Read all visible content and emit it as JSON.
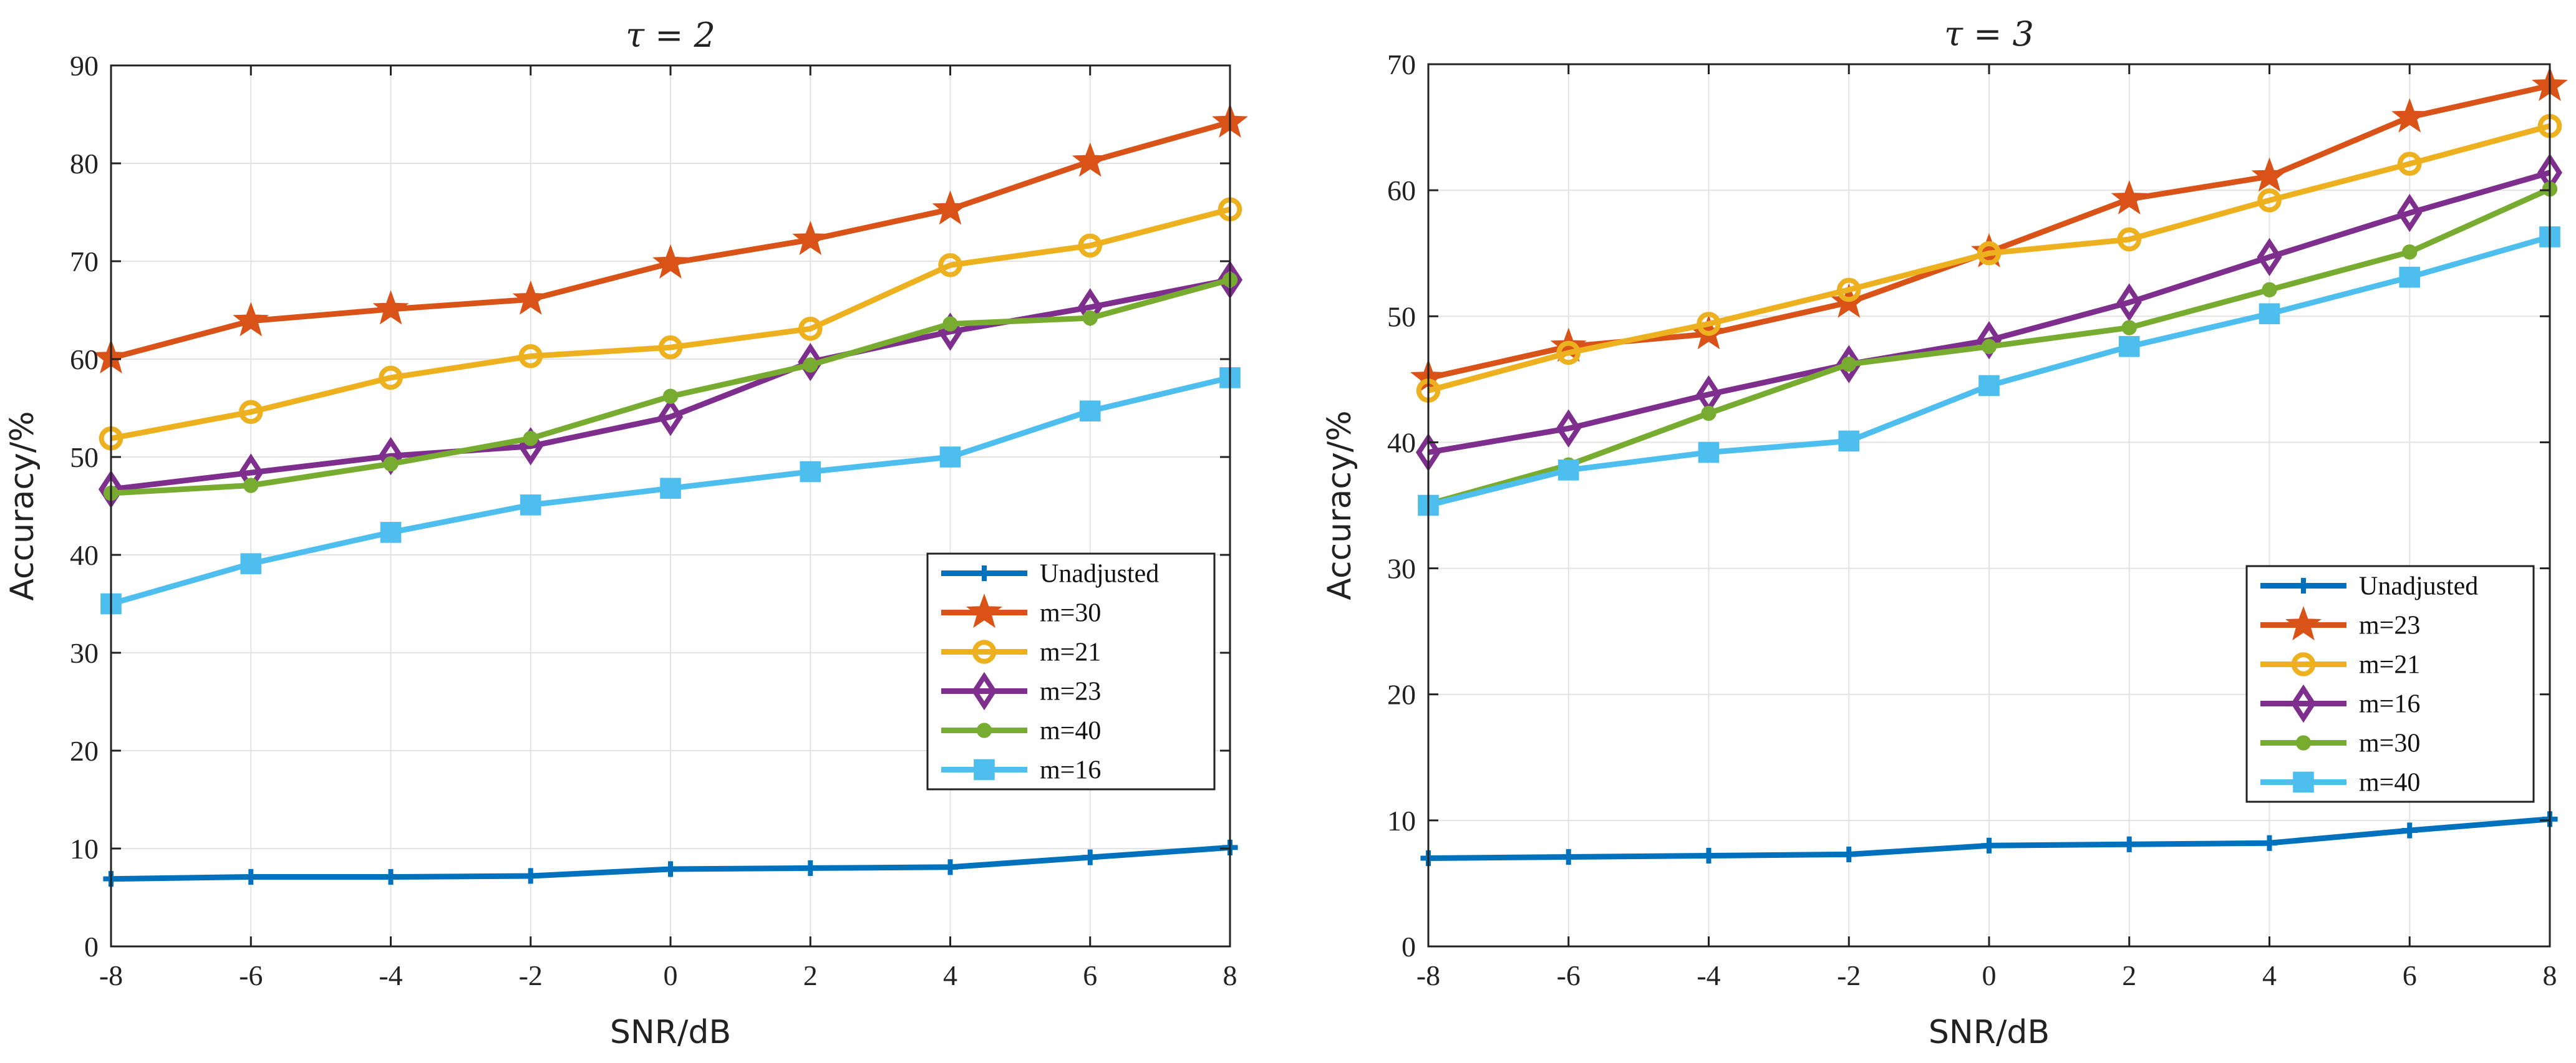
{
  "chart_data": [
    {
      "type": "line",
      "title": "τ = 2",
      "xlabel": "SNR/dB",
      "ylabel": "Accuracy/%",
      "x": [
        -8,
        -6,
        -4,
        -2,
        0,
        2,
        4,
        6,
        8
      ],
      "x_ticks": [
        "-8",
        "-6",
        "-4",
        "-2",
        "0",
        "2",
        "4",
        "6",
        "8"
      ],
      "xlim": [
        -8,
        8
      ],
      "ylim": [
        0,
        90
      ],
      "y_ticks": [
        "0",
        "10",
        "20",
        "30",
        "40",
        "50",
        "60",
        "70",
        "80",
        "90"
      ],
      "grid": true,
      "legend_position": "right-middle",
      "series": [
        {
          "name": "Unadjusted",
          "color": "#0072BD",
          "marker": "plus",
          "values": [
            6.9,
            7.1,
            7.1,
            7.2,
            7.9,
            8.0,
            8.1,
            9.1,
            10.1
          ]
        },
        {
          "name": "m=30",
          "color": "#D95319",
          "marker": "star",
          "values": [
            60.1,
            63.9,
            65.1,
            66.1,
            69.8,
            72.2,
            75.3,
            80.2,
            84.2
          ]
        },
        {
          "name": "m=21",
          "color": "#EDB120",
          "marker": "circle",
          "values": [
            51.9,
            54.6,
            58.1,
            60.3,
            61.2,
            63.1,
            69.6,
            71.6,
            75.3
          ]
        },
        {
          "name": "m=23",
          "color": "#7E2F8E",
          "marker": "diamond",
          "values": [
            46.7,
            48.4,
            50.1,
            51.1,
            54.1,
            59.7,
            62.8,
            65.3,
            68.1
          ]
        },
        {
          "name": "m=40",
          "color": "#77AC30",
          "marker": "dot",
          "values": [
            46.3,
            47.1,
            49.3,
            51.9,
            56.2,
            59.4,
            63.6,
            64.2,
            68.1
          ]
        },
        {
          "name": "m=16",
          "color": "#4DBEEE",
          "marker": "square",
          "values": [
            35.0,
            39.1,
            42.3,
            45.1,
            46.8,
            48.5,
            50.0,
            54.7,
            58.1
          ]
        }
      ]
    },
    {
      "type": "line",
      "title": "τ = 3",
      "xlabel": "SNR/dB",
      "ylabel": "Accuracy/%",
      "x": [
        -8,
        -6,
        -4,
        -2,
        0,
        2,
        4,
        6,
        8
      ],
      "x_ticks": [
        "-8",
        "-6",
        "-4",
        "-2",
        "0",
        "2",
        "4",
        "6",
        "8"
      ],
      "xlim": [
        -8,
        8
      ],
      "ylim": [
        0,
        70
      ],
      "y_ticks": [
        "0",
        "10",
        "20",
        "30",
        "40",
        "50",
        "60",
        "70"
      ],
      "grid": true,
      "legend_position": "bottom-right",
      "series": [
        {
          "name": "Unadjusted",
          "color": "#0072BD",
          "marker": "plus",
          "values": [
            7.0,
            7.1,
            7.2,
            7.3,
            8.0,
            8.1,
            8.2,
            9.2,
            10.1
          ]
        },
        {
          "name": "m=23",
          "color": "#D95319",
          "marker": "star",
          "values": [
            45.1,
            47.6,
            48.6,
            51.1,
            55.1,
            59.3,
            61.1,
            65.8,
            68.3
          ]
        },
        {
          "name": "m=21",
          "color": "#EDB120",
          "marker": "circle",
          "values": [
            44.1,
            47.1,
            49.4,
            52.1,
            55.0,
            56.1,
            59.2,
            62.1,
            65.1
          ]
        },
        {
          "name": "m=16",
          "color": "#7E2F8E",
          "marker": "diamond",
          "values": [
            39.2,
            41.1,
            43.8,
            46.2,
            48.1,
            51.1,
            54.7,
            58.2,
            61.4
          ]
        },
        {
          "name": "m=30",
          "color": "#77AC30",
          "marker": "dot",
          "values": [
            35.1,
            38.2,
            42.3,
            46.2,
            47.6,
            49.1,
            52.1,
            55.1,
            60.1
          ]
        },
        {
          "name": "m=40",
          "color": "#4DBEEE",
          "marker": "square",
          "values": [
            35.0,
            37.8,
            39.2,
            40.1,
            44.5,
            47.6,
            50.2,
            53.1,
            56.3
          ]
        }
      ]
    }
  ]
}
